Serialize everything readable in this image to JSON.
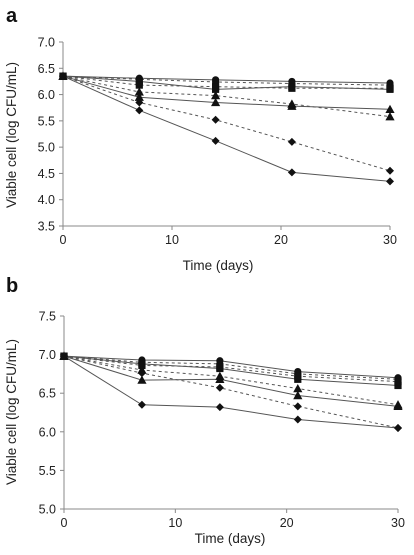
{
  "chart_data": [
    {
      "panel": "a",
      "type": "line",
      "xlabel": "Time (days)",
      "ylabel": "Viable cell (log CFU/mL)",
      "xlim": [
        0,
        30
      ],
      "ylim": [
        3.5,
        7.0
      ],
      "xticks": [
        0,
        10,
        20,
        30
      ],
      "yticks": [
        3.5,
        4.0,
        4.5,
        5.0,
        5.5,
        6.0,
        6.5,
        7.0
      ],
      "ytick_decimals": 1,
      "x": [
        0,
        7,
        14,
        21,
        30
      ],
      "legend": "none",
      "grid": false,
      "series": [
        {
          "marker": "circle",
          "line": "solid",
          "values": [
            6.35,
            6.31,
            6.28,
            6.25,
            6.22
          ]
        },
        {
          "marker": "circle",
          "line": "dashed",
          "values": [
            6.35,
            6.29,
            6.24,
            6.21,
            6.18
          ]
        },
        {
          "marker": "square",
          "line": "solid",
          "values": [
            6.35,
            6.25,
            6.1,
            6.15,
            6.1
          ]
        },
        {
          "marker": "square",
          "line": "dashed",
          "values": [
            6.35,
            6.18,
            6.15,
            6.12,
            6.12
          ]
        },
        {
          "marker": "triangle",
          "line": "solid",
          "values": [
            6.35,
            5.95,
            5.85,
            5.78,
            5.72
          ]
        },
        {
          "marker": "triangle",
          "line": "dashed",
          "values": [
            6.35,
            6.05,
            5.98,
            5.82,
            5.58
          ]
        },
        {
          "marker": "diamond",
          "line": "dashed",
          "values": [
            6.35,
            5.85,
            5.52,
            5.1,
            4.55
          ]
        },
        {
          "marker": "diamond",
          "line": "solid",
          "values": [
            6.35,
            5.7,
            5.12,
            4.52,
            4.35
          ]
        }
      ]
    },
    {
      "panel": "b",
      "type": "line",
      "xlabel": "Time (days)",
      "ylabel": "Viable cell (log CFU/mL)",
      "xlim": [
        0,
        30
      ],
      "ylim": [
        5.0,
        7.5
      ],
      "xticks": [
        0,
        10,
        20,
        30
      ],
      "yticks": [
        5.0,
        5.5,
        6.0,
        6.5,
        7.0,
        7.5
      ],
      "ytick_decimals": 1,
      "x": [
        0,
        7,
        14,
        21,
        30
      ],
      "legend": "none",
      "grid": false,
      "series": [
        {
          "marker": "circle",
          "line": "solid",
          "values": [
            6.98,
            6.93,
            6.92,
            6.78,
            6.7
          ]
        },
        {
          "marker": "circle",
          "line": "dashed",
          "values": [
            6.98,
            6.9,
            6.88,
            6.75,
            6.68
          ]
        },
        {
          "marker": "square",
          "line": "solid",
          "values": [
            6.98,
            6.88,
            6.82,
            6.68,
            6.6
          ]
        },
        {
          "marker": "square",
          "line": "dashed",
          "values": [
            6.98,
            6.86,
            6.84,
            6.72,
            6.65
          ]
        },
        {
          "marker": "triangle",
          "line": "solid",
          "values": [
            6.98,
            6.67,
            6.68,
            6.47,
            6.33
          ]
        },
        {
          "marker": "triangle",
          "line": "dashed",
          "values": [
            6.98,
            6.8,
            6.72,
            6.56,
            6.35
          ]
        },
        {
          "marker": "diamond",
          "line": "dashed",
          "values": [
            6.98,
            6.76,
            6.57,
            6.33,
            6.05
          ]
        },
        {
          "marker": "diamond",
          "line": "solid",
          "values": [
            6.98,
            6.35,
            6.32,
            6.16,
            6.05
          ]
        }
      ]
    }
  ],
  "colors": {
    "line": "#555555",
    "marker": "#111111",
    "axis": "#888888"
  }
}
